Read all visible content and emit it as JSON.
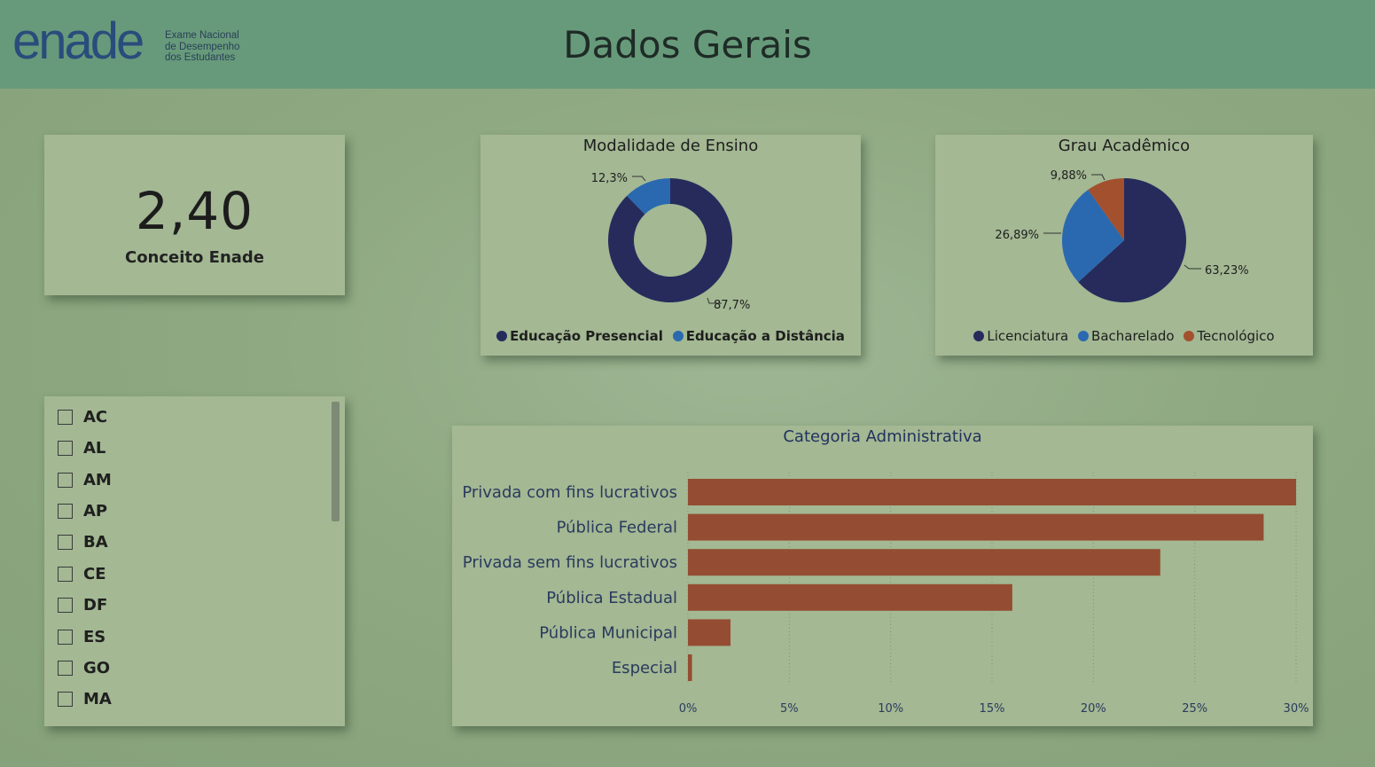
{
  "header": {
    "logo_word": "enade",
    "logo_sub_line1": "Exame Nacional",
    "logo_sub_line2": "de Desempenho",
    "logo_sub_line3": "dos Estudantes",
    "title": "Dados Gerais"
  },
  "kpi": {
    "value": "2,40",
    "label": "Conceito Enade"
  },
  "slicer": {
    "items": [
      "AC",
      "AL",
      "AM",
      "AP",
      "BA",
      "CE",
      "DF",
      "ES",
      "GO",
      "MA"
    ]
  },
  "colors": {
    "navy": "#272b5c",
    "blue": "#2a69b0",
    "orange": "#a3502f",
    "bar": "#944d32"
  },
  "modalidade": {
    "title": "Modalidade de Ensino",
    "legend": [
      "Educação Presencial",
      "Educação a Distância"
    ],
    "labels": [
      "87,7%",
      "12,3%"
    ]
  },
  "grau": {
    "title": "Grau Acadêmico",
    "legend": [
      "Licenciatura",
      "Bacharelado",
      "Tecnológico"
    ],
    "labels": [
      "63,23%",
      "26,89%",
      "9,88%"
    ]
  },
  "categoria": {
    "title": "Categoria Administrativa",
    "tick_labels": [
      "0%",
      "5%",
      "10%",
      "15%",
      "20%",
      "25%",
      "30%"
    ]
  },
  "chart_data": [
    {
      "type": "pie",
      "title": "Modalidade de Ensino",
      "categories": [
        "Educação Presencial",
        "Educação a Distância"
      ],
      "values": [
        87.7,
        12.3
      ]
    },
    {
      "type": "pie",
      "title": "Grau Acadêmico",
      "categories": [
        "Licenciatura",
        "Bacharelado",
        "Tecnológico"
      ],
      "values": [
        63.23,
        26.89,
        9.88
      ]
    },
    {
      "type": "bar",
      "title": "Categoria Administrativa",
      "categories": [
        "Privada com fins lucrativos",
        "Pública Federal",
        "Privada sem fins lucrativos",
        "Pública Estadual",
        "Pública Municipal",
        "Especial"
      ],
      "values": [
        30.0,
        28.4,
        23.3,
        16.0,
        2.1,
        0.2
      ],
      "xlim": [
        0,
        30
      ],
      "orientation": "horizontal"
    }
  ]
}
